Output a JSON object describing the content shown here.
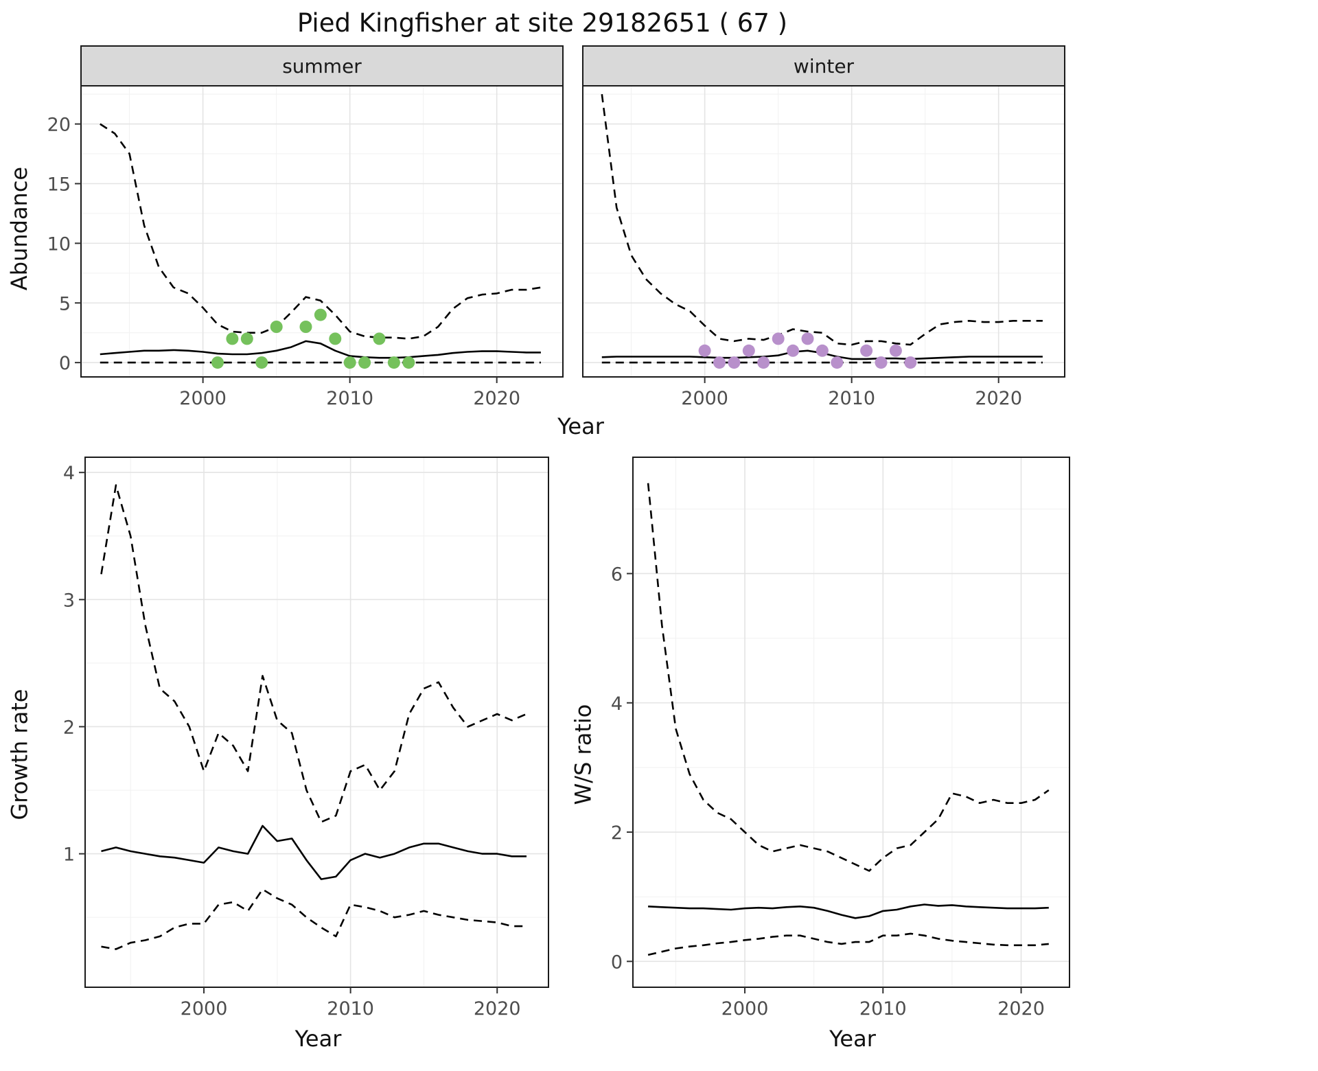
{
  "title": "Pied Kingfisher at site 29182651 ( 67 )",
  "colors": {
    "summer_points": "#75C15C",
    "winter_points": "#B890CB",
    "line": "#000000",
    "strip_bg": "#D9D9D9",
    "strip_text": "#1A1A1A",
    "grid_major": "#E4E4E4",
    "grid_minor": "#F1F1F1",
    "panel_border": "#1A1A1A",
    "tick_mark": "#333333",
    "tick_text": "#4D4D4D"
  },
  "chart_data": [
    {
      "id": "abundance-summer",
      "type": "line",
      "facet_label": "summer",
      "xlabel": "Year",
      "ylabel": "Abundance",
      "xlim": [
        1991.7,
        2024.5
      ],
      "ylim": [
        -1.2,
        23.2
      ],
      "xticks": [
        2000,
        2010,
        2020
      ],
      "yticks": [
        0,
        5,
        10,
        15,
        20
      ],
      "grid": true,
      "legend": "none",
      "x": [
        1993,
        1994,
        1995,
        1996,
        1997,
        1998,
        1999,
        2000,
        2001,
        2002,
        2003,
        2004,
        2005,
        2006,
        2007,
        2008,
        2009,
        2010,
        2011,
        2012,
        2013,
        2014,
        2015,
        2016,
        2017,
        2018,
        2019,
        2020,
        2021,
        2022,
        2023
      ],
      "series": [
        {
          "name": "upper_ci",
          "style": "dashed",
          "values": [
            20,
            19.2,
            17.5,
            11.5,
            8,
            6.3,
            5.8,
            4.6,
            3.2,
            2.6,
            2.5,
            2.5,
            3,
            4.2,
            5.5,
            5.2,
            4,
            2.6,
            2.2,
            2.1,
            2.1,
            2,
            2.2,
            3,
            4.5,
            5.4,
            5.7,
            5.8,
            6.1,
            6.1,
            6.3
          ]
        },
        {
          "name": "median",
          "style": "solid",
          "values": [
            0.7,
            0.8,
            0.9,
            1,
            1,
            1.05,
            1,
            0.9,
            0.75,
            0.7,
            0.7,
            0.8,
            1,
            1.3,
            1.8,
            1.6,
            1,
            0.55,
            0.45,
            0.4,
            0.4,
            0.45,
            0.55,
            0.65,
            0.8,
            0.9,
            0.95,
            0.95,
            0.9,
            0.85,
            0.85
          ]
        },
        {
          "name": "lower_ci",
          "style": "dashed",
          "values": [
            0,
            0,
            0,
            0,
            0,
            0,
            0,
            0,
            0,
            0,
            0,
            0,
            0,
            0,
            0,
            0,
            0,
            0,
            0,
            0,
            0,
            0,
            0,
            0,
            0,
            0,
            0,
            0,
            0,
            0,
            0
          ]
        }
      ],
      "points": {
        "name": "observed-counts-summer",
        "color_key": "summer_points",
        "x": [
          2001,
          2002,
          2003,
          2004,
          2005,
          2007,
          2008,
          2009,
          2010,
          2011,
          2012,
          2013,
          2014
        ],
        "y": [
          0,
          2,
          2,
          0,
          3,
          3,
          4,
          2,
          0,
          0,
          2,
          0,
          0
        ]
      }
    },
    {
      "id": "abundance-winter",
      "type": "line",
      "facet_label": "winter",
      "xlabel": "Year",
      "ylabel": "Abundance",
      "xlim": [
        1991.7,
        2024.5
      ],
      "ylim": [
        -1.2,
        23.2
      ],
      "xticks": [
        2000,
        2010,
        2020
      ],
      "yticks": [
        0,
        5,
        10,
        15,
        20
      ],
      "grid": true,
      "legend": "none",
      "x": [
        1993,
        1994,
        1995,
        1996,
        1997,
        1998,
        1999,
        2000,
        2001,
        2002,
        2003,
        2004,
        2005,
        2006,
        2007,
        2008,
        2009,
        2010,
        2011,
        2012,
        2013,
        2014,
        2015,
        2016,
        2017,
        2018,
        2019,
        2020,
        2021,
        2022,
        2023
      ],
      "series": [
        {
          "name": "upper_ci",
          "style": "dashed",
          "values": [
            22.5,
            13,
            9,
            7,
            5.8,
            4.9,
            4.3,
            3.1,
            2,
            1.8,
            2,
            1.9,
            2.3,
            2.8,
            2.6,
            2.5,
            1.6,
            1.5,
            1.8,
            1.8,
            1.6,
            1.5,
            2.4,
            3.2,
            3.4,
            3.5,
            3.4,
            3.4,
            3.5,
            3.5,
            3.5
          ]
        },
        {
          "name": "median",
          "style": "solid",
          "values": [
            0.45,
            0.5,
            0.5,
            0.5,
            0.5,
            0.5,
            0.5,
            0.45,
            0.4,
            0.4,
            0.45,
            0.5,
            0.6,
            0.9,
            1,
            0.8,
            0.5,
            0.3,
            0.3,
            0.35,
            0.35,
            0.3,
            0.35,
            0.4,
            0.45,
            0.5,
            0.5,
            0.5,
            0.5,
            0.5,
            0.5
          ]
        },
        {
          "name": "lower_ci",
          "style": "dashed",
          "values": [
            0,
            0,
            0,
            0,
            0,
            0,
            0,
            0,
            0,
            0,
            0,
            0,
            0,
            0,
            0,
            0,
            0,
            0,
            0,
            0,
            0,
            0,
            0,
            0,
            0,
            0,
            0,
            0,
            0,
            0,
            0
          ]
        }
      ],
      "points": {
        "name": "observed-counts-winter",
        "color_key": "winter_points",
        "x": [
          2000,
          2001,
          2002,
          2003,
          2004,
          2005,
          2006,
          2007,
          2008,
          2009,
          2011,
          2012,
          2013,
          2014
        ],
        "y": [
          1,
          0,
          0,
          1,
          0,
          2,
          1,
          2,
          1,
          0,
          1,
          0,
          1,
          0
        ]
      }
    },
    {
      "id": "growth-rate",
      "type": "line",
      "facet_label": "",
      "xlabel": "Year",
      "ylabel": "Growth rate",
      "xlim": [
        1991.9,
        2023.5
      ],
      "ylim": [
        -0.05,
        4.12
      ],
      "xticks": [
        2000,
        2010,
        2020
      ],
      "yticks": [
        1,
        2,
        3,
        4
      ],
      "grid": true,
      "legend": "none",
      "x": [
        1993,
        1994,
        1995,
        1996,
        1997,
        1998,
        1999,
        2000,
        2001,
        2002,
        2003,
        2004,
        2005,
        2006,
        2007,
        2008,
        2009,
        2010,
        2011,
        2012,
        2013,
        2014,
        2015,
        2016,
        2017,
        2018,
        2019,
        2020,
        2021,
        2022
      ],
      "series": [
        {
          "name": "upper_ci",
          "style": "dashed",
          "values": [
            3.2,
            3.9,
            3.5,
            2.8,
            2.3,
            2.2,
            2,
            1.65,
            1.95,
            1.85,
            1.65,
            2.4,
            2.05,
            1.95,
            1.5,
            1.25,
            1.3,
            1.65,
            1.7,
            1.5,
            1.65,
            2.1,
            2.3,
            2.35,
            2.15,
            2,
            2.05,
            2.1,
            2.05,
            2.1
          ]
        },
        {
          "name": "median",
          "style": "solid",
          "values": [
            1.02,
            1.05,
            1.02,
            1,
            0.98,
            0.97,
            0.95,
            0.93,
            1.05,
            1.02,
            1,
            1.22,
            1.1,
            1.12,
            0.95,
            0.8,
            0.82,
            0.95,
            1,
            0.97,
            1,
            1.05,
            1.08,
            1.08,
            1.05,
            1.02,
            1,
            1,
            0.98,
            0.98
          ]
        },
        {
          "name": "lower_ci",
          "style": "dashed",
          "values": [
            0.27,
            0.25,
            0.3,
            0.32,
            0.35,
            0.42,
            0.45,
            0.45,
            0.6,
            0.62,
            0.55,
            0.72,
            0.65,
            0.6,
            0.5,
            0.42,
            0.35,
            0.6,
            0.58,
            0.55,
            0.5,
            0.52,
            0.55,
            0.52,
            0.5,
            0.48,
            0.47,
            0.46,
            0.43,
            0.43
          ]
        }
      ]
    },
    {
      "id": "ws-ratio",
      "type": "line",
      "facet_label": "",
      "xlabel": "Year",
      "ylabel": "W/S ratio",
      "xlim": [
        1991.9,
        2023.5
      ],
      "ylim": [
        -0.4,
        7.8
      ],
      "xticks": [
        2000,
        2010,
        2020
      ],
      "yticks": [
        0,
        2,
        4,
        6
      ],
      "grid": true,
      "legend": "none",
      "x": [
        1993,
        1994,
        1995,
        1996,
        1997,
        1998,
        1999,
        2000,
        2001,
        2002,
        2003,
        2004,
        2005,
        2006,
        2007,
        2008,
        2009,
        2010,
        2011,
        2012,
        2013,
        2014,
        2015,
        2016,
        2017,
        2018,
        2019,
        2020,
        2021,
        2022
      ],
      "series": [
        {
          "name": "upper_ci",
          "style": "dashed",
          "values": [
            7.4,
            5.2,
            3.6,
            2.9,
            2.5,
            2.3,
            2.2,
            2,
            1.8,
            1.7,
            1.75,
            1.8,
            1.75,
            1.7,
            1.6,
            1.5,
            1.4,
            1.6,
            1.75,
            1.8,
            2,
            2.2,
            2.6,
            2.55,
            2.45,
            2.5,
            2.45,
            2.45,
            2.5,
            2.65
          ]
        },
        {
          "name": "median",
          "style": "solid",
          "values": [
            0.85,
            0.84,
            0.83,
            0.82,
            0.82,
            0.81,
            0.8,
            0.82,
            0.83,
            0.82,
            0.84,
            0.85,
            0.83,
            0.78,
            0.72,
            0.67,
            0.7,
            0.78,
            0.8,
            0.85,
            0.88,
            0.86,
            0.87,
            0.85,
            0.84,
            0.83,
            0.82,
            0.82,
            0.82,
            0.83
          ]
        },
        {
          "name": "lower_ci",
          "style": "dashed",
          "values": [
            0.1,
            0.15,
            0.2,
            0.23,
            0.25,
            0.28,
            0.3,
            0.33,
            0.35,
            0.38,
            0.4,
            0.4,
            0.35,
            0.3,
            0.27,
            0.3,
            0.3,
            0.4,
            0.4,
            0.43,
            0.4,
            0.35,
            0.32,
            0.3,
            0.28,
            0.26,
            0.25,
            0.25,
            0.25,
            0.27
          ]
        }
      ]
    }
  ]
}
